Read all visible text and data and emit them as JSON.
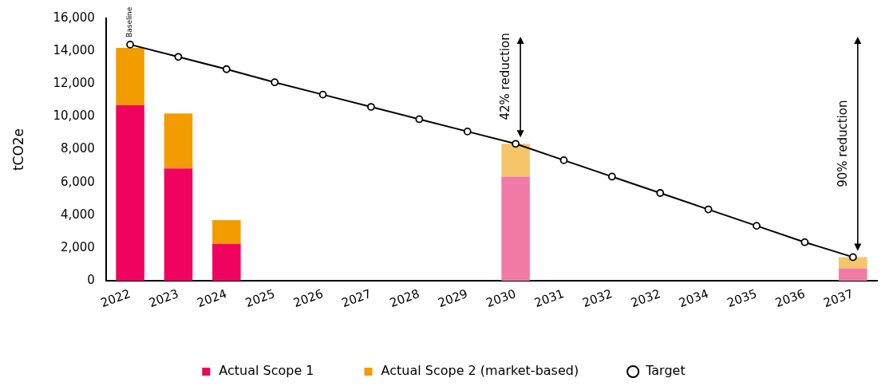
{
  "chart_data": {
    "type": "bar",
    "ylabel": "tCO2e",
    "stacked": true,
    "legend": "bottom",
    "marker": "circle",
    "grid": false,
    "categories": [
      "2022",
      "2023",
      "2024",
      "2025",
      "2026",
      "2027",
      "2028",
      "2029",
      "2030",
      "2031",
      "2032",
      "2032",
      "2034",
      "2035",
      "2036",
      "2037"
    ],
    "ylim": [
      0,
      16000
    ],
    "yticks": [
      {
        "value": 0,
        "label": "0"
      },
      {
        "value": 2000,
        "label": "2,000"
      },
      {
        "value": 4000,
        "label": "4,000"
      },
      {
        "value": 6000,
        "label": "6,000"
      },
      {
        "value": 8000,
        "label": "8,000"
      },
      {
        "value": 10000,
        "label": "10,000"
      },
      {
        "value": 12000,
        "label": "12,000"
      },
      {
        "value": 14000,
        "label": "14,000"
      },
      {
        "value": 16000,
        "label": "16,000"
      }
    ],
    "series": [
      {
        "name": "Actual Scope 1",
        "color": "#f0035f",
        "colors": [
          "#f0035f",
          "#f0035f",
          "#f0035f",
          "#f0035f",
          "#f0035f",
          "#f0035f",
          "#f0035f",
          "#f0035f",
          "#f27aa6",
          "#f0035f",
          "#f0035f",
          "#f0035f",
          "#f0035f",
          "#f0035f",
          "#f0035f",
          "#f27aa6"
        ],
        "values": [
          10700,
          6850,
          2250,
          null,
          null,
          null,
          null,
          null,
          6350,
          null,
          null,
          null,
          null,
          null,
          null,
          750
        ]
      },
      {
        "name": "Actual Scope 2 (market-based)",
        "color": "#f39c00",
        "colors": [
          "#f39c00",
          "#f39c00",
          "#f39c00",
          "#f39c00",
          "#f39c00",
          "#f39c00",
          "#f39c00",
          "#f39c00",
          "#f5c56a",
          "#f39c00",
          "#f39c00",
          "#f39c00",
          "#f39c00",
          "#f39c00",
          "#f39c00",
          "#f5c56a"
        ],
        "values": [
          3500,
          3350,
          1450,
          null,
          null,
          null,
          null,
          null,
          2000,
          null,
          null,
          null,
          null,
          null,
          null,
          690
        ]
      },
      {
        "name": "Target",
        "type": "line",
        "color": "#000000",
        "values": [
          14400,
          13650,
          12900,
          12100,
          11350,
          10600,
          9850,
          9100,
          8350,
          7350,
          6350,
          5350,
          4350,
          3350,
          2350,
          1440
        ]
      }
    ],
    "annotations": [
      {
        "text": "Baseline",
        "x": "2022",
        "y": 14400
      },
      "42% reduction",
      "90% reduction"
    ]
  }
}
